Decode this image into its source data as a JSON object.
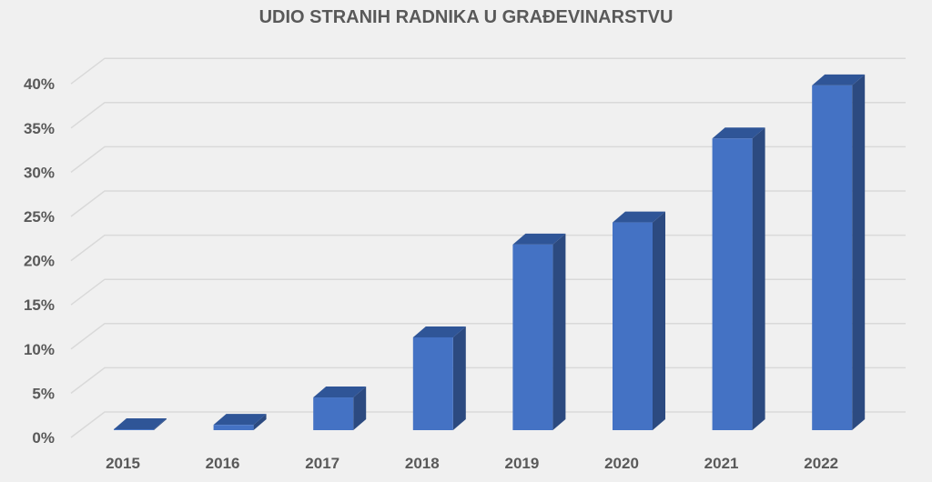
{
  "chart_data": {
    "type": "bar",
    "style": "3d-clustered-column",
    "title": "UDIO STRANIH RADNIKA U GRAĐEVINARSTVU",
    "xlabel": "",
    "ylabel": "",
    "categories": [
      "2015",
      "2016",
      "2017",
      "2018",
      "2019",
      "2020",
      "2021",
      "2022"
    ],
    "values": [
      0.1,
      0.6,
      3.7,
      10.5,
      21.0,
      23.5,
      33.0,
      39.0
    ],
    "value_unit": "%",
    "ylim": [
      0,
      40
    ],
    "yticks": [
      0,
      5,
      10,
      15,
      20,
      25,
      30,
      35,
      40
    ],
    "ytick_labels": [
      "0%",
      "5%",
      "10%",
      "15%",
      "20%",
      "25%",
      "30%",
      "35%",
      "40%"
    ],
    "grid": true,
    "legend": null
  },
  "colors": {
    "background": "#f0f0f0",
    "gridline": "#d9d9d9",
    "bar_front": "#4472c4",
    "bar_side": "#2c4a80",
    "bar_top": "#2f5597",
    "text": "#595959"
  }
}
